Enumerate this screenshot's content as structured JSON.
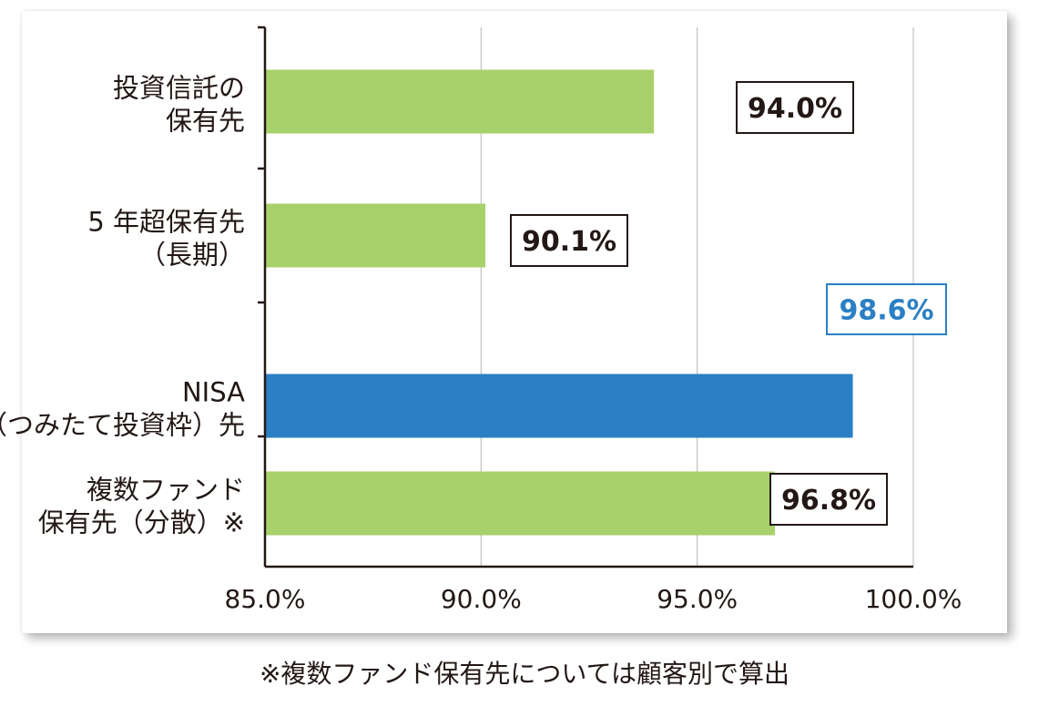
{
  "colors": {
    "bar_default": "#a9d16b",
    "bar_highlight": "#2a7fc5",
    "text": "#231815",
    "label_highlight": "#2a7fc5",
    "grid": "#b5b5b5",
    "axis": "#231815"
  },
  "chart_data": {
    "type": "bar",
    "orientation": "horizontal",
    "categories": [
      [
        "投資信託の",
        "保有先"
      ],
      [
        "5 年超保有先",
        "（長期）"
      ],
      [
        "NISA",
        "（つみたて投資枠）先"
      ],
      [
        "複数ファンド",
        "保有先（分散）※"
      ]
    ],
    "values": [
      94.0,
      90.1,
      98.6,
      96.8
    ],
    "value_labels": [
      "94.0%",
      "90.1%",
      "98.6%",
      "96.8%"
    ],
    "highlight_index": 2,
    "xlim": [
      85.0,
      100.0
    ],
    "xticks": [
      85.0,
      90.0,
      95.0,
      100.0
    ],
    "xtick_labels": [
      "85.0%",
      "90.0%",
      "95.0%",
      "100.0%"
    ],
    "grid": true
  },
  "footnote": "※複数ファンド保有先については顧客別で算出"
}
